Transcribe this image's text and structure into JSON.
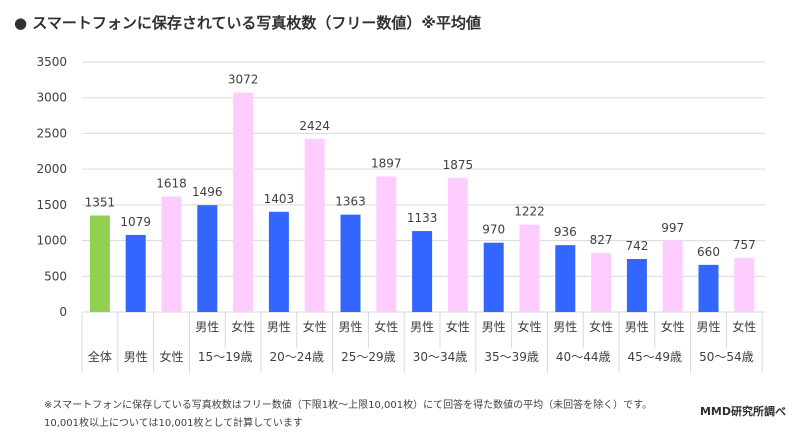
{
  "title": "● スマートフォンに保存されている写真枚数（フリー数値）※平均値",
  "footnotes": [
    "※スマートフォンに保存している写真枚数はフリー数値（下限1枚～上限10,001枚）にて回答を得た数値の平均（未回答を除く）です。",
    "10,001枚以上については10,001枚として計算しています"
  ],
  "source": "MMD研究所調べ",
  "colors": {
    "total": "#92d050",
    "male": "#3366ff",
    "female": "#ffccff",
    "grid": "#d9d9d9"
  },
  "chart_data": {
    "type": "bar",
    "title": "スマートフォンに保存されている写真枚数（フリー数値）※平均値",
    "ylim": [
      0,
      3500
    ],
    "yticks": [
      0,
      500,
      1000,
      1500,
      2000,
      2500,
      3000,
      3500
    ],
    "grid": true,
    "bars": [
      {
        "label": "全体",
        "group": "全体",
        "value": 1351,
        "kind": "total"
      },
      {
        "label": "男性",
        "group": "男性",
        "value": 1079,
        "kind": "male"
      },
      {
        "label": "女性",
        "group": "女性",
        "value": 1618,
        "kind": "female"
      },
      {
        "label": "男性",
        "group": "15～19歳",
        "value": 1496,
        "kind": "male"
      },
      {
        "label": "女性",
        "group": "15～19歳",
        "value": 3072,
        "kind": "female"
      },
      {
        "label": "男性",
        "group": "20～24歳",
        "value": 1403,
        "kind": "male"
      },
      {
        "label": "女性",
        "group": "20～24歳",
        "value": 2424,
        "kind": "female"
      },
      {
        "label": "男性",
        "group": "25～29歳",
        "value": 1363,
        "kind": "male"
      },
      {
        "label": "女性",
        "group": "25～29歳",
        "value": 1897,
        "kind": "female"
      },
      {
        "label": "男性",
        "group": "30～34歳",
        "value": 1133,
        "kind": "male"
      },
      {
        "label": "女性",
        "group": "30～34歳",
        "value": 1875,
        "kind": "female"
      },
      {
        "label": "男性",
        "group": "35～39歳",
        "value": 970,
        "kind": "male"
      },
      {
        "label": "女性",
        "group": "35～39歳",
        "value": 1222,
        "kind": "female"
      },
      {
        "label": "男性",
        "group": "40～44歳",
        "value": 936,
        "kind": "male"
      },
      {
        "label": "女性",
        "group": "40～44歳",
        "value": 827,
        "kind": "female"
      },
      {
        "label": "男性",
        "group": "45～49歳",
        "value": 742,
        "kind": "male"
      },
      {
        "label": "女性",
        "group": "45～49歳",
        "value": 997,
        "kind": "female"
      },
      {
        "label": "男性",
        "group": "50～54歳",
        "value": 660,
        "kind": "male"
      },
      {
        "label": "女性",
        "group": "50～54歳",
        "value": 757,
        "kind": "female"
      }
    ]
  }
}
